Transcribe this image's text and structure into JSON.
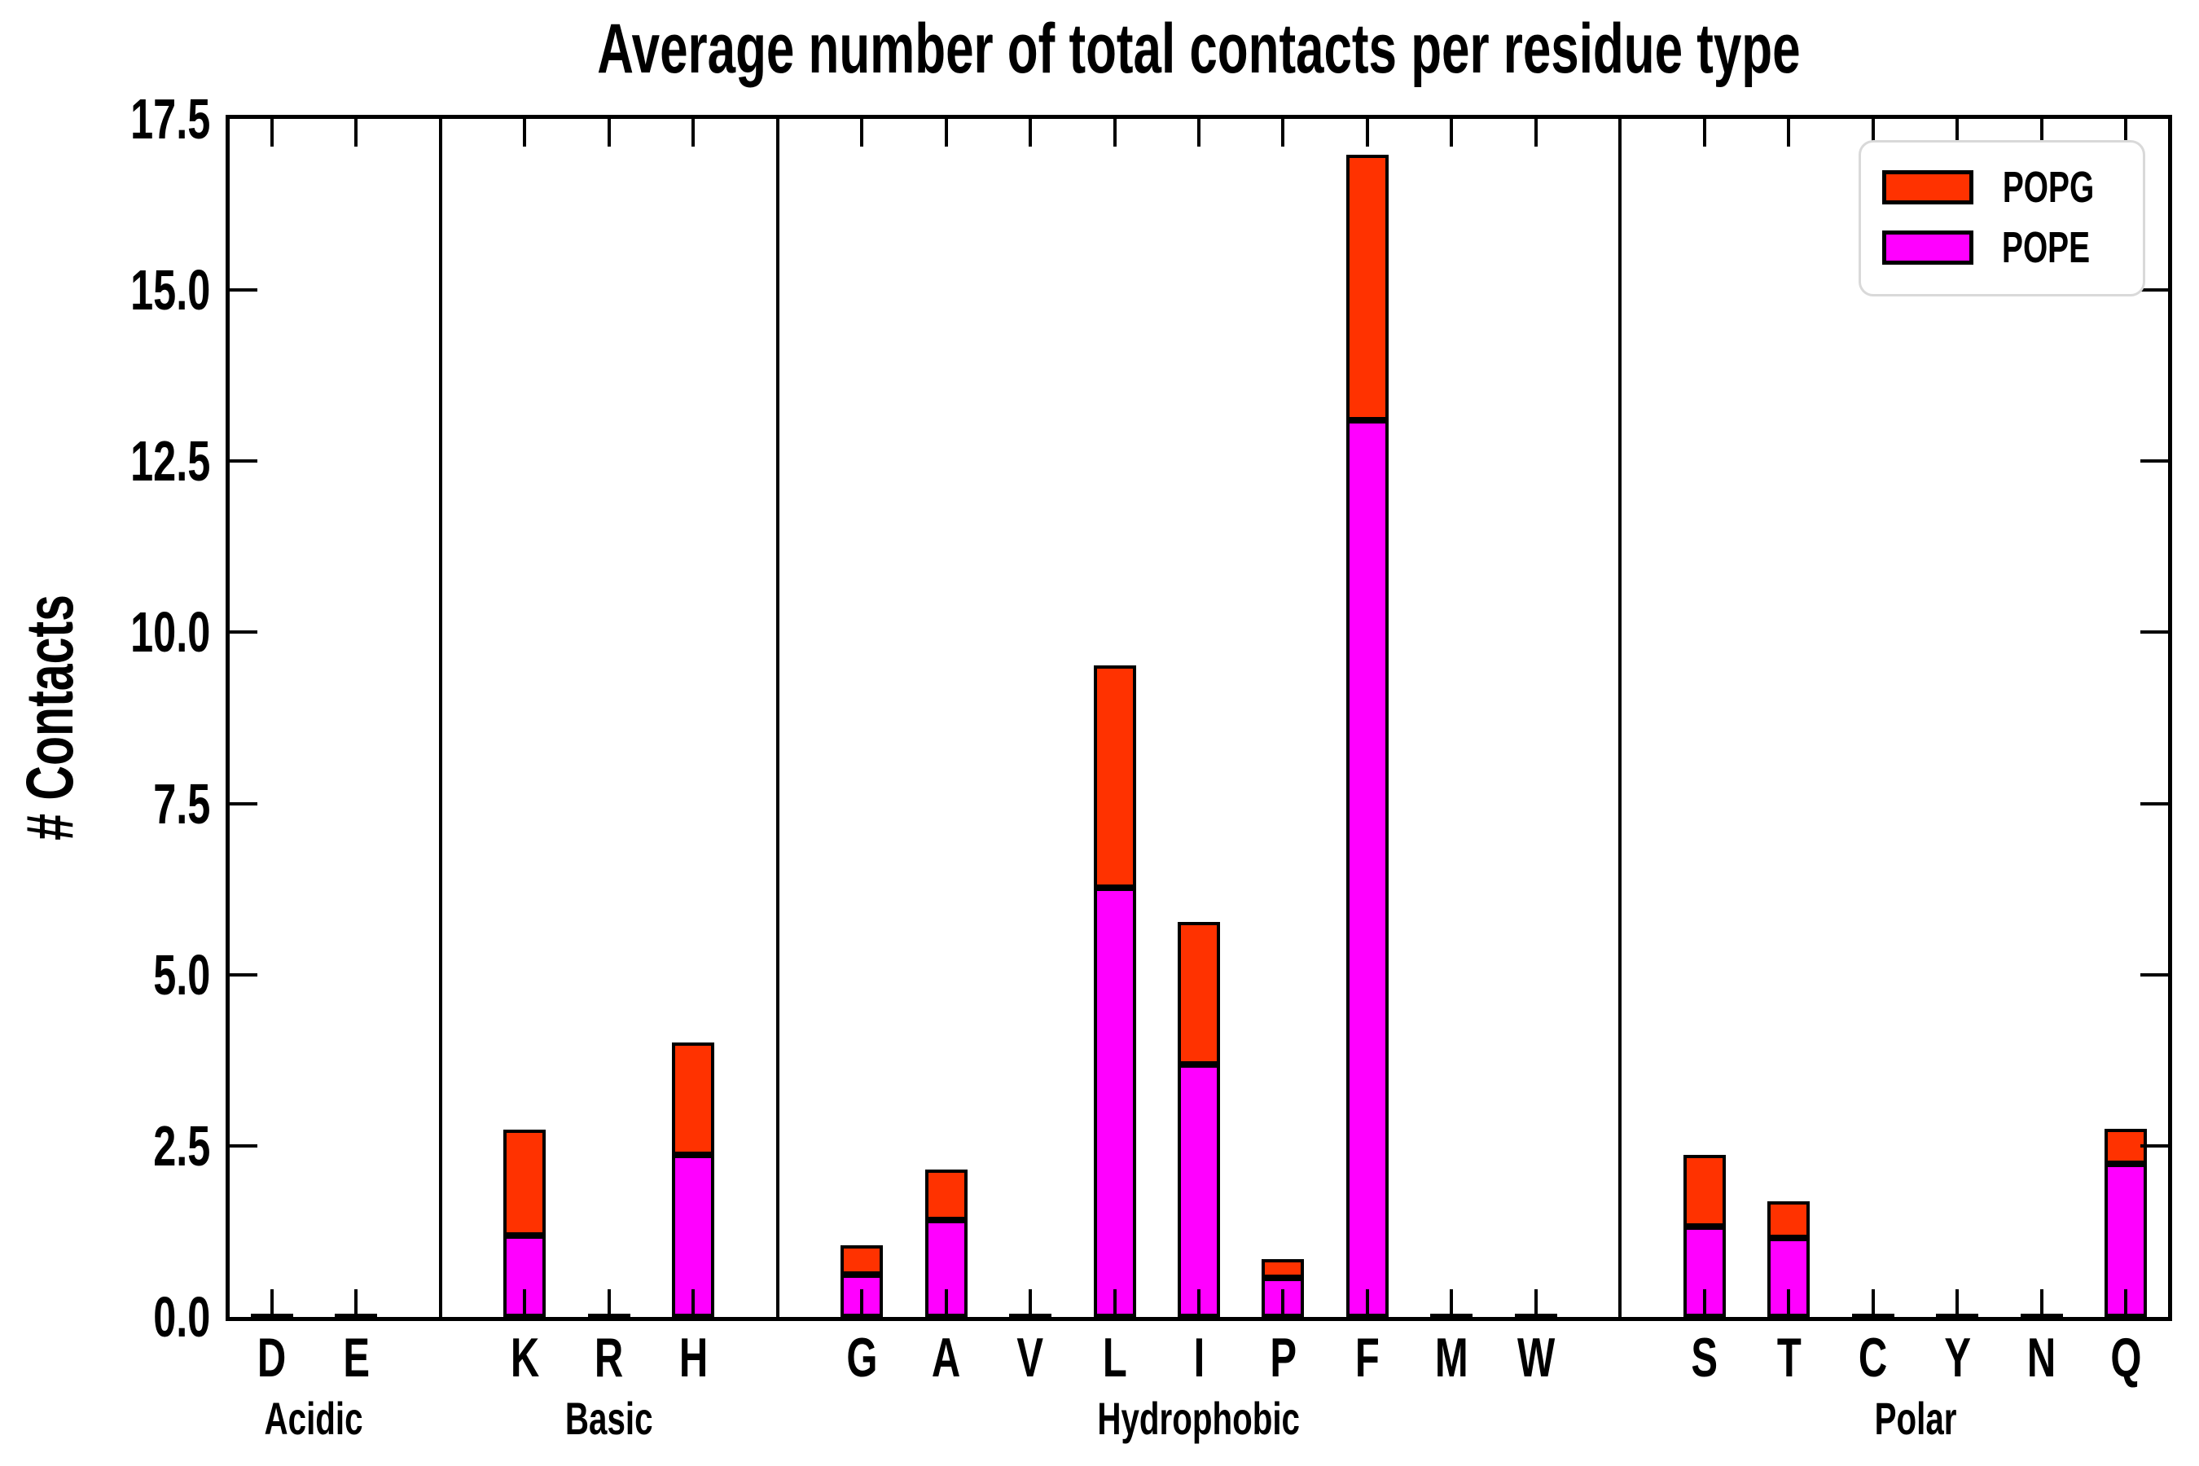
{
  "title": "Average number of total contacts per residue type",
  "ylabel": "# Contacts",
  "legend": {
    "items": [
      {
        "label": "POPG",
        "color": "#FF3200"
      },
      {
        "label": "POPE",
        "color": "#FF00FF"
      }
    ]
  },
  "chart_data": {
    "type": "bar",
    "stacked": true,
    "title": "Average number of total contacts per residue type",
    "xlabel": "",
    "ylabel": "# Contacts",
    "ylim": [
      0,
      17.5
    ],
    "yticks": [
      "0.0",
      "2.5",
      "5.0",
      "7.5",
      "10.0",
      "12.5",
      "15.0",
      "17.5"
    ],
    "grid": false,
    "legend_position": "upper right",
    "categories": [
      "D",
      "E",
      "K",
      "R",
      "H",
      "G",
      "A",
      "V",
      "L",
      "I",
      "P",
      "F",
      "M",
      "W",
      "S",
      "T",
      "C",
      "Y",
      "N",
      "Q"
    ],
    "groups": [
      {
        "label": "Acidic",
        "members": [
          "D",
          "E"
        ]
      },
      {
        "label": "Basic",
        "members": [
          "K",
          "R",
          "H"
        ]
      },
      {
        "label": "Hydrophobic",
        "members": [
          "G",
          "A",
          "V",
          "L",
          "I",
          "P",
          "F",
          "M",
          "W"
        ]
      },
      {
        "label": "Polar",
        "members": [
          "S",
          "T",
          "C",
          "Y",
          "N",
          "Q"
        ]
      }
    ],
    "series": [
      {
        "name": "POPE",
        "color": "#FF00FF",
        "values": [
          0.02,
          0.02,
          1.19,
          0.02,
          2.37,
          0.62,
          1.42,
          0.02,
          6.27,
          3.69,
          0.57,
          13.1,
          0.02,
          0.03,
          1.32,
          1.15,
          0.01,
          0.02,
          0.02,
          2.24
        ]
      },
      {
        "name": "POPG",
        "color": "#FF3200",
        "values": [
          0.01,
          0.01,
          1.55,
          0.01,
          1.64,
          0.43,
          0.73,
          0.01,
          3.25,
          2.08,
          0.28,
          3.88,
          0.01,
          0.01,
          1.05,
          0.54,
          0.01,
          0.01,
          0.01,
          0.51
        ]
      }
    ]
  }
}
